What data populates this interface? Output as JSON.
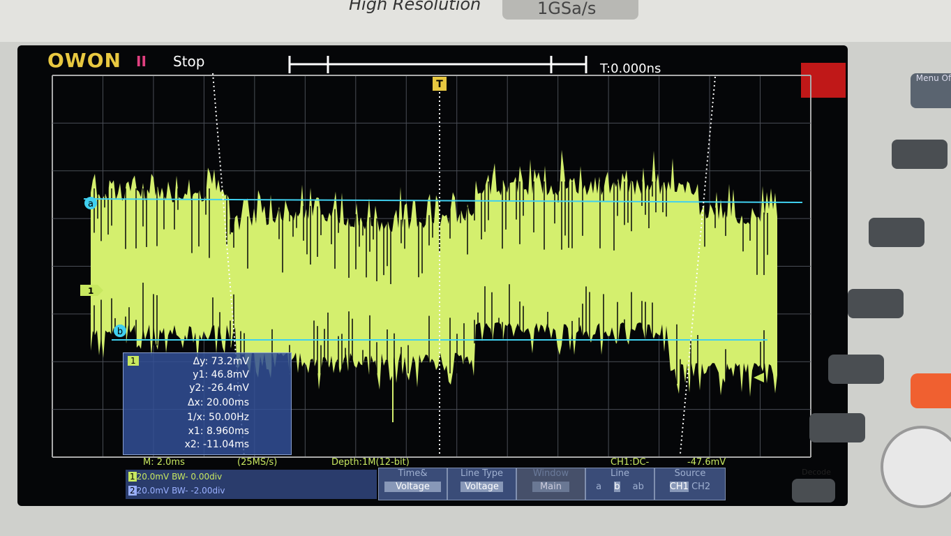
{
  "bezel": {
    "mode": "High Resolution",
    "sample_rate": "1GSa/s"
  },
  "header": {
    "brand": "OWON",
    "run_icon": "II",
    "state": "Stop",
    "trigger_time": "T:0.000ns"
  },
  "markers": {
    "trigger": "T",
    "channel": "1",
    "cursor_a": "a",
    "cursor_b": "b"
  },
  "cursor_panel": {
    "channel": "1",
    "lines": [
      "Δy: 73.2mV",
      "y1: 46.8mV",
      "y2: -26.4mV",
      "Δx: 20.00ms",
      "1/x: 50.00Hz",
      "x1: 8.960ms",
      "x2: -11.04ms"
    ]
  },
  "status": {
    "timebase": "M: 2.0ms",
    "sample": "(25MS/s)",
    "depth": "Depth:1M(12-bit)",
    "trigger": "CH1:DC-",
    "trigger_level": "-47.6mV"
  },
  "channels": [
    {
      "id": "1",
      "setting": "20.0mV BW- 0.00div"
    },
    {
      "id": "2",
      "setting": "20.0mV BW- -2.00div"
    }
  ],
  "menu": [
    {
      "top": "Time&",
      "bottom": "Voltage"
    },
    {
      "top": "Line Type",
      "bottom": "Voltage"
    },
    {
      "top": "Window",
      "bottom": "Main"
    },
    {
      "top": "Line",
      "options": [
        "a",
        "b",
        "ab"
      ]
    },
    {
      "top": "Source",
      "options": [
        "CH1",
        "CH2"
      ]
    }
  ],
  "buttons": [
    "Menu Off",
    "Decode"
  ]
}
